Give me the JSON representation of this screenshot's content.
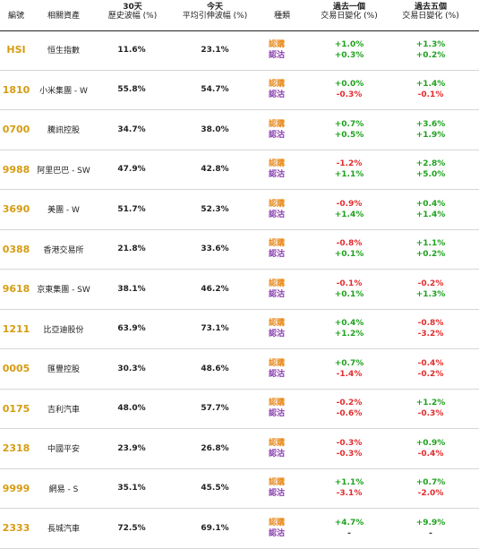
{
  "header": {
    "code": "編號",
    "asset": "相關資產",
    "hist_vol": [
      "30天",
      "歷史波幅 (%)"
    ],
    "impl_vol": [
      "今天",
      "平均引伸波幅 (%)"
    ],
    "type": "種類",
    "chg1": [
      "過去一個",
      "交易日變化 (%)"
    ],
    "chg5": [
      "過去五個",
      "交易日變化 (%)"
    ]
  },
  "type_labels": {
    "call": "認購",
    "put": "認沽"
  },
  "rows": [
    {
      "code": "HSI",
      "name": "恒生指數",
      "hv": "11.6%",
      "iv": "23.1%",
      "c1_call": "+1.0%",
      "c1_put": "+0.3%",
      "c5_call": "+1.3%",
      "c5_put": "+0.2%"
    },
    {
      "code": "1810",
      "name": "小米集團 - W",
      "hv": "55.8%",
      "iv": "54.7%",
      "c1_call": "+0.0%",
      "c1_put": "-0.3%",
      "c5_call": "+1.4%",
      "c5_put": "-0.1%"
    },
    {
      "code": "0700",
      "name": "騰訊控股",
      "hv": "34.7%",
      "iv": "38.0%",
      "c1_call": "+0.7%",
      "c1_put": "+0.5%",
      "c5_call": "+3.6%",
      "c5_put": "+1.9%"
    },
    {
      "code": "9988",
      "name": "阿里巴巴 - SW",
      "hv": "47.9%",
      "iv": "42.8%",
      "c1_call": "-1.2%",
      "c1_put": "+1.1%",
      "c5_call": "+2.8%",
      "c5_put": "+5.0%"
    },
    {
      "code": "3690",
      "name": "美團 - W",
      "hv": "51.7%",
      "iv": "52.3%",
      "c1_call": "-0.9%",
      "c1_put": "+1.4%",
      "c5_call": "+0.4%",
      "c5_put": "+1.4%"
    },
    {
      "code": "0388",
      "name": "香港交易所",
      "hv": "21.8%",
      "iv": "33.6%",
      "c1_call": "-0.8%",
      "c1_put": "+0.1%",
      "c5_call": "+1.1%",
      "c5_put": "+0.2%"
    },
    {
      "code": "9618",
      "name": "京東集團 - SW",
      "hv": "38.1%",
      "iv": "46.2%",
      "c1_call": "-0.1%",
      "c1_put": "+0.1%",
      "c5_call": "-0.2%",
      "c5_put": "+1.3%"
    },
    {
      "code": "1211",
      "name": "比亞迪股份",
      "hv": "63.9%",
      "iv": "73.1%",
      "c1_call": "+0.4%",
      "c1_put": "+1.2%",
      "c5_call": "-0.8%",
      "c5_put": "-3.2%"
    },
    {
      "code": "0005",
      "name": "匯豐控股",
      "hv": "30.3%",
      "iv": "48.6%",
      "c1_call": "+0.7%",
      "c1_put": "-1.4%",
      "c5_call": "-0.4%",
      "c5_put": "-0.2%"
    },
    {
      "code": "0175",
      "name": "吉利汽車",
      "hv": "48.0%",
      "iv": "57.7%",
      "c1_call": "-0.2%",
      "c1_put": "-0.6%",
      "c5_call": "+1.2%",
      "c5_put": "-0.3%"
    },
    {
      "code": "2318",
      "name": "中國平安",
      "hv": "23.9%",
      "iv": "26.8%",
      "c1_call": "-0.3%",
      "c1_put": "-0.3%",
      "c5_call": "+0.9%",
      "c5_put": "-0.4%"
    },
    {
      "code": "9999",
      "name": "網易 - S",
      "hv": "35.1%",
      "iv": "45.5%",
      "c1_call": "+1.1%",
      "c1_put": "-3.1%",
      "c5_call": "+0.7%",
      "c5_put": "-2.0%"
    },
    {
      "code": "2333",
      "name": "長城汽車",
      "hv": "72.5%",
      "iv": "69.1%",
      "c1_call": "+4.7%",
      "c1_put": "-",
      "c5_call": "+9.9%",
      "c5_put": "-"
    }
  ],
  "colors": {
    "code": "#d69c12",
    "call": "#e8891a",
    "put": "#8a3fb0",
    "pos": "#1ea21e",
    "neg": "#e32b2b"
  }
}
